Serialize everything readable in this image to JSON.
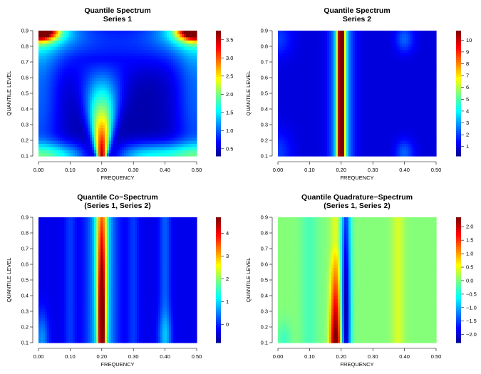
{
  "chart_data": [
    {
      "type": "heatmap",
      "title": "Quantile Spectrum",
      "subtitle": "Series 1",
      "xlabel": "FREQUENCY",
      "ylabel": "QUANTILE LEVEL",
      "xlim": [
        0.0,
        0.5
      ],
      "ylim": [
        0.1,
        0.9
      ],
      "x_ticks": [
        "0.00",
        "0.10",
        "0.20",
        "0.30",
        "0.40",
        "0.50"
      ],
      "y_ticks": [
        "0.1",
        "0.2",
        "0.3",
        "0.4",
        "0.5",
        "0.6",
        "0.7",
        "0.8",
        "0.9"
      ],
      "colorbar": {
        "min": 0.3,
        "max": 3.75,
        "ticks": [
          0.5,
          1.0,
          1.5,
          2.0,
          2.5,
          3.0,
          3.5
        ],
        "tick_labels": [
          "0.5",
          "1.0",
          "1.5",
          "2.0",
          "2.5",
          "3.0",
          "3.5"
        ]
      },
      "colormap": "jet",
      "pattern": "spectrum1",
      "features": "peak near frequency 0.20 at low quantile levels (value about 3.7 at q=0.1), tapering upward to about q=0.7; high values at the top corners (q=0.9 at frequencies 0.00 and 0.50); low background around 0.4"
    },
    {
      "type": "heatmap",
      "title": "Quantile Spectrum",
      "subtitle": "Series 2",
      "xlabel": "FREQUENCY",
      "ylabel": "QUANTILE LEVEL",
      "xlim": [
        0.0,
        0.5
      ],
      "ylim": [
        0.1,
        0.9
      ],
      "x_ticks": [
        "0.00",
        "0.10",
        "0.20",
        "0.30",
        "0.40",
        "0.50"
      ],
      "y_ticks": [
        "0.1",
        "0.2",
        "0.3",
        "0.4",
        "0.5",
        "0.6",
        "0.7",
        "0.8",
        "0.9"
      ],
      "colorbar": {
        "min": 0.2,
        "max": 10.8,
        "ticks": [
          1,
          2,
          3,
          4,
          5,
          6,
          7,
          8,
          9,
          10
        ],
        "tick_labels": [
          "1",
          "2",
          "3",
          "4",
          "5",
          "6",
          "7",
          "8",
          "9",
          "10"
        ]
      },
      "colormap": "jet",
      "pattern": "spectrum2",
      "features": "vertical band at frequency 0.20 across all quantile levels (value about 10.5); faint raised regions near frequency 0.40 and at low quantiles near frequency 0.00; background around 1"
    },
    {
      "type": "heatmap",
      "title": "Quantile Co−Spectrum",
      "subtitle": "(Series 1, Series 2)",
      "xlabel": "FREQUENCY",
      "ylabel": "QUANTILE LEVEL",
      "xlim": [
        0.0,
        0.5
      ],
      "ylim": [
        0.1,
        0.9
      ],
      "x_ticks": [
        "0.00",
        "0.10",
        "0.20",
        "0.30",
        "0.40",
        "0.50"
      ],
      "y_ticks": [
        "0.1",
        "0.2",
        "0.3",
        "0.4",
        "0.5",
        "0.6",
        "0.7",
        "0.8",
        "0.9"
      ],
      "colorbar": {
        "min": -0.8,
        "max": 4.7,
        "ticks": [
          0,
          1,
          2,
          3,
          4
        ],
        "tick_labels": [
          "0",
          "1",
          "2",
          "3",
          "4"
        ]
      },
      "colormap": "jet",
      "pattern": "cospectrum",
      "features": "vertical band at frequency 0.20 peaking near q=0.1 to 0.3 (value about 4.5); faint vertical stripes near frequencies 0.00, 0.10, 0.30, 0.40; background around -0.3"
    },
    {
      "type": "heatmap",
      "title": "Quantile Quadrature−Spectrum",
      "subtitle": "(Series 1, Series 2)",
      "xlabel": "FREQUENCY",
      "ylabel": "QUANTILE LEVEL",
      "xlim": [
        0.0,
        0.5
      ],
      "ylim": [
        0.1,
        0.9
      ],
      "x_ticks": [
        "0.00",
        "0.10",
        "0.20",
        "0.30",
        "0.40",
        "0.50"
      ],
      "y_ticks": [
        "0.1",
        "0.2",
        "0.3",
        "0.4",
        "0.5",
        "0.6",
        "0.7",
        "0.8",
        "0.9"
      ],
      "colorbar": {
        "min": -2.3,
        "max": 2.35,
        "ticks": [
          -2.0,
          -1.5,
          -1.0,
          -0.5,
          0.0,
          0.5,
          1.0,
          1.5,
          2.0
        ],
        "tick_labels": [
          "−2.0",
          "−1.5",
          "−1.0",
          "−0.5",
          "0.0",
          "0.5",
          "1.0",
          "1.5",
          "2.0"
        ]
      },
      "colormap": "jet",
      "pattern": "quadrature",
      "features": "positive ridge at frequency about 0.18 (value about 2.2 at low quantiles, weakening toward q=0.7) next to a negative ridge at frequency about 0.21 (value about -2.2); background near 0"
    }
  ]
}
